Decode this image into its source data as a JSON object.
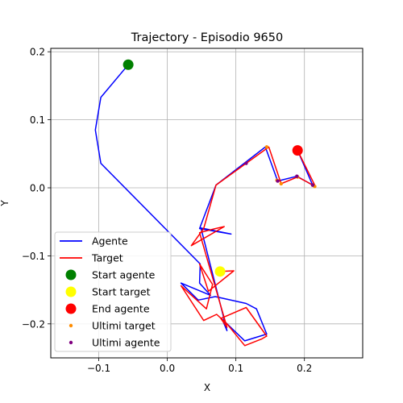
{
  "chart_data": {
    "type": "line",
    "title": "Trajectory - Episodio 9650",
    "xlabel": "X",
    "ylabel": "Y",
    "xlim": [
      -0.17,
      0.285
    ],
    "ylim": [
      -0.25,
      0.205
    ],
    "xticks": [
      -0.1,
      0.0,
      0.1,
      0.2
    ],
    "xtick_labels": [
      "−0.1",
      "0.0",
      "0.1",
      "0.2"
    ],
    "yticks": [
      0.2,
      0.1,
      0.0,
      -0.1,
      -0.2
    ],
    "ytick_labels": [
      "0.2",
      "0.1",
      "0.0",
      "−0.1",
      "−0.2"
    ],
    "grid": true,
    "legend_position": "lower-left",
    "series": [
      {
        "name": "Agente",
        "kind": "line",
        "color": "#0000ff",
        "x": [
          -0.057,
          -0.097,
          -0.105,
          -0.097,
          0.048,
          0.047,
          0.063,
          0.02,
          0.045,
          0.07,
          0.115,
          0.13,
          0.145,
          0.113,
          0.08,
          0.087,
          0.049,
          0.093,
          0.047,
          0.071,
          0.143,
          0.161,
          0.189,
          0.212,
          0.19
        ],
        "y": [
          0.181,
          0.133,
          0.085,
          0.036,
          -0.112,
          -0.14,
          -0.158,
          -0.14,
          -0.165,
          -0.16,
          -0.17,
          -0.178,
          -0.215,
          -0.225,
          -0.193,
          -0.21,
          -0.059,
          -0.068,
          -0.06,
          0.004,
          0.06,
          0.01,
          0.017,
          0.004,
          0.055
        ]
      },
      {
        "name": "Target",
        "kind": "line",
        "color": "#ff0000",
        "x": [
          0.077,
          0.097,
          0.06,
          0.047,
          0.066,
          0.057,
          0.02,
          0.053,
          0.072,
          0.087,
          0.113,
          0.138,
          0.145,
          0.115,
          0.078,
          0.087,
          0.047,
          0.07,
          0.083,
          0.035,
          0.053,
          0.071,
          0.148,
          0.166,
          0.19,
          0.216,
          0.19
        ],
        "y": [
          -0.123,
          -0.122,
          -0.152,
          -0.112,
          -0.142,
          -0.178,
          -0.144,
          -0.195,
          -0.186,
          -0.2,
          -0.232,
          -0.222,
          -0.218,
          -0.176,
          -0.192,
          -0.205,
          -0.066,
          -0.06,
          -0.057,
          -0.085,
          -0.06,
          0.004,
          0.06,
          0.006,
          0.016,
          0.002,
          0.055
        ]
      }
    ],
    "markers": [
      {
        "name": "Start agente",
        "color": "#008000",
        "x": -0.057,
        "y": 0.181,
        "size": "large"
      },
      {
        "name": "Start target",
        "color": "#ffff00",
        "x": 0.077,
        "y": -0.123,
        "size": "large"
      },
      {
        "name": "End agente",
        "color": "#ff0000",
        "x": 0.19,
        "y": 0.055,
        "size": "large"
      }
    ],
    "scatter_small": [
      {
        "name": "Ultimi target",
        "color": "#ff8c00",
        "points": [
          [
            0.145,
            0.06
          ],
          [
            0.166,
            0.006
          ],
          [
            0.19,
            0.016
          ],
          [
            0.215,
            0.002
          ],
          [
            0.19,
            0.055
          ],
          [
            0.16,
            0.011
          ]
        ]
      },
      {
        "name": "Ultimi agente",
        "color": "#800080",
        "points": [
          [
            0.115,
            0.036
          ],
          [
            0.161,
            0.01
          ],
          [
            0.189,
            0.017
          ],
          [
            0.212,
            0.004
          ],
          [
            0.19,
            0.055
          ]
        ]
      }
    ],
    "legend": [
      "Agente",
      "Target",
      "Start agente",
      "Start target",
      "End agente",
      "Ultimi target",
      "Ultimi agente"
    ]
  }
}
